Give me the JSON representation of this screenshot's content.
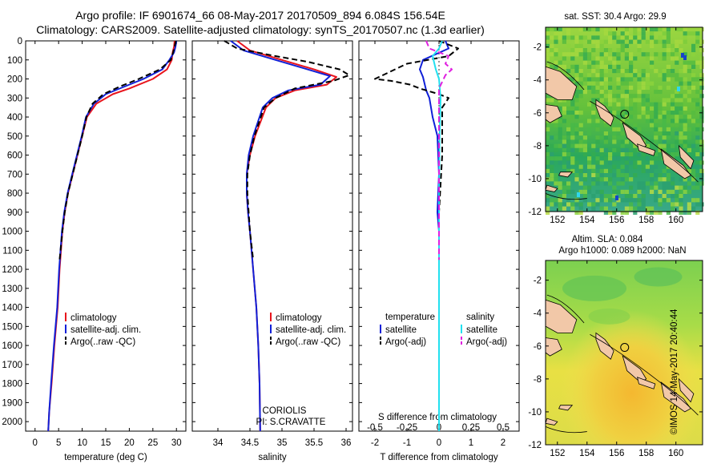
{
  "title_line1": "Argo profile: IF 6901674_66 08-May-2017 20170509_894 6.084S 156.54E",
  "title_line2": "Climatology: CARS2009. Satellite-adjusted climatology: synTS_20170507.nc (1.3d earlier)",
  "colors": {
    "red": "#e8141c",
    "blue": "#1020d8",
    "black": "#000000",
    "cyan": "#22e0ef",
    "magenta": "#e020e0",
    "land": "#f2c8a8"
  },
  "chart_data": [
    {
      "type": "line",
      "panel": "temperature",
      "xlabel": "temperature (deg C)",
      "ylabel": "",
      "xlim": [
        -2,
        32
      ],
      "ylim": [
        2050,
        0
      ],
      "xticks": [
        "0",
        "5",
        "10",
        "15",
        "20",
        "25",
        "30"
      ],
      "yticks": [
        "0",
        "100",
        "200",
        "300",
        "400",
        "500",
        "600",
        "700",
        "800",
        "900",
        "1000",
        "1100",
        "1200",
        "1300",
        "1400",
        "1500",
        "1600",
        "1700",
        "1800",
        "1900",
        "2000"
      ],
      "legend": [
        "climatology",
        "satellite-adj. clim.",
        "Argo(..raw -QC)"
      ],
      "series": [
        {
          "name": "climatology",
          "color": "red",
          "points": [
            [
              29.6,
              0
            ],
            [
              29.5,
              30
            ],
            [
              29.2,
              60
            ],
            [
              29.0,
              100
            ],
            [
              28.0,
              150
            ],
            [
              25.0,
              200
            ],
            [
              20.0,
              250
            ],
            [
              16.5,
              280
            ],
            [
              13.0,
              330
            ],
            [
              11.0,
              400
            ],
            [
              10.0,
              500
            ],
            [
              9.0,
              600
            ],
            [
              8.0,
              700
            ],
            [
              7.0,
              800
            ],
            [
              6.3,
              900
            ],
            [
              5.8,
              1000
            ],
            [
              5.2,
              1200
            ],
            [
              4.8,
              1400
            ],
            [
              4.1,
              1600
            ],
            [
              3.5,
              1800
            ],
            [
              3.0,
              1950
            ],
            [
              2.8,
              2050
            ]
          ]
        },
        {
          "name": "satellite-adj. clim.",
          "color": "blue",
          "points": [
            [
              30.0,
              0
            ],
            [
              29.8,
              30
            ],
            [
              29.5,
              60
            ],
            [
              28.5,
              100
            ],
            [
              27.0,
              150
            ],
            [
              23.0,
              200
            ],
            [
              19.0,
              240
            ],
            [
              15.0,
              280
            ],
            [
              12.5,
              330
            ],
            [
              10.8,
              400
            ],
            [
              9.9,
              500
            ],
            [
              8.9,
              600
            ],
            [
              7.9,
              700
            ],
            [
              6.9,
              800
            ],
            [
              6.2,
              900
            ],
            [
              5.7,
              1000
            ],
            [
              5.1,
              1200
            ],
            [
              4.7,
              1400
            ],
            [
              4.0,
              1600
            ],
            [
              3.4,
              1800
            ],
            [
              3.0,
              1950
            ],
            [
              2.8,
              2050
            ]
          ]
        },
        {
          "name": "Argo(..raw -QC)",
          "color": "black",
          "dashed": true,
          "points": [
            [
              29.9,
              0
            ],
            [
              29.6,
              30
            ],
            [
              29.3,
              60
            ],
            [
              28.8,
              100
            ],
            [
              26.5,
              150
            ],
            [
              22.0,
              200
            ],
            [
              18.0,
              240
            ],
            [
              14.5,
              280
            ],
            [
              12.2,
              330
            ],
            [
              10.9,
              400
            ],
            [
              10.0,
              500
            ],
            [
              9.0,
              600
            ],
            [
              8.0,
              700
            ],
            [
              7.0,
              800
            ],
            [
              6.3,
              900
            ],
            [
              5.8,
              1000
            ],
            [
              5.2,
              1150
            ]
          ]
        }
      ]
    },
    {
      "type": "line",
      "panel": "salinity",
      "xlabel": "salinity",
      "xlim": [
        33.6,
        36.1
      ],
      "ylim": [
        2050,
        0
      ],
      "xticks": [
        "34",
        "34.5",
        "35",
        "35.5",
        "36"
      ],
      "legend": [
        "climatology",
        "satellite-adj. clim.",
        "Argo(..raw -QC)"
      ],
      "annotation": [
        "CORIOLIS",
        "PI: S.CRAVATTE"
      ],
      "series": [
        {
          "name": "climatology",
          "color": "red",
          "points": [
            [
              34.3,
              0
            ],
            [
              34.5,
              50
            ],
            [
              35.0,
              100
            ],
            [
              35.5,
              150
            ],
            [
              35.85,
              190
            ],
            [
              35.7,
              230
            ],
            [
              35.2,
              260
            ],
            [
              34.9,
              300
            ],
            [
              34.75,
              350
            ],
            [
              34.58,
              500
            ],
            [
              34.5,
              600
            ],
            [
              34.45,
              700
            ],
            [
              34.45,
              800
            ],
            [
              34.47,
              900
            ],
            [
              34.5,
              1000
            ],
            [
              34.55,
              1200
            ],
            [
              34.6,
              1400
            ],
            [
              34.63,
              1600
            ],
            [
              34.65,
              1800
            ],
            [
              34.66,
              2050
            ]
          ]
        },
        {
          "name": "satellite-adj. clim.",
          "color": "blue",
          "points": [
            [
              34.2,
              0
            ],
            [
              34.4,
              50
            ],
            [
              34.9,
              100
            ],
            [
              35.4,
              150
            ],
            [
              35.75,
              185
            ],
            [
              35.6,
              230
            ],
            [
              35.1,
              260
            ],
            [
              34.85,
              300
            ],
            [
              34.7,
              350
            ],
            [
              34.55,
              500
            ],
            [
              34.48,
              600
            ],
            [
              34.45,
              700
            ],
            [
              34.45,
              800
            ],
            [
              34.47,
              900
            ],
            [
              34.5,
              1000
            ],
            [
              34.55,
              1200
            ],
            [
              34.6,
              1400
            ],
            [
              34.63,
              1600
            ],
            [
              34.65,
              1800
            ],
            [
              34.66,
              2050
            ]
          ]
        },
        {
          "name": "Argo(..raw -QC)",
          "color": "black",
          "dashed": true,
          "points": [
            [
              34.1,
              0
            ],
            [
              34.3,
              40
            ],
            [
              34.9,
              80
            ],
            [
              35.4,
              110
            ],
            [
              35.9,
              150
            ],
            [
              36.05,
              180
            ],
            [
              35.8,
              210
            ],
            [
              35.2,
              250
            ],
            [
              34.9,
              300
            ],
            [
              34.72,
              350
            ],
            [
              34.57,
              500
            ],
            [
              34.5,
              600
            ],
            [
              34.46,
              700
            ],
            [
              34.46,
              800
            ],
            [
              34.48,
              900
            ],
            [
              34.5,
              1000
            ],
            [
              34.55,
              1150
            ]
          ]
        }
      ]
    },
    {
      "type": "line",
      "panel": "difference",
      "xlabel": "T difference from climatology",
      "top_label": "S difference from climatology",
      "xlim": [
        -2.5,
        2.5
      ],
      "ylim": [
        2050,
        0
      ],
      "xticks": [
        "-2",
        "-1",
        "0",
        "1",
        "2"
      ],
      "sticks": [
        "-0.5",
        "-0.25",
        "0",
        "0.25",
        "0.5"
      ],
      "legend_titles": [
        "temperature",
        "salinity"
      ],
      "legend": [
        "satellite",
        "Argo(-adj)",
        "satellite",
        "Argo(-adj)"
      ],
      "series": [
        {
          "name": "temperature satellite",
          "color": "blue",
          "points": [
            [
              0.2,
              0
            ],
            [
              0.3,
              40
            ],
            [
              -0.5,
              100
            ],
            [
              -0.6,
              150
            ],
            [
              -0.5,
              190
            ],
            [
              -0.4,
              260
            ],
            [
              -0.3,
              300
            ],
            [
              -0.2,
              400
            ],
            [
              -0.05,
              500
            ],
            [
              0.0,
              700
            ],
            [
              -0.05,
              900
            ],
            [
              0.0,
              1000
            ],
            [
              0.0,
              1400
            ],
            [
              0.0,
              2050
            ]
          ]
        },
        {
          "name": "temperature Argo(-adj)",
          "color": "black",
          "dashed": true,
          "points": [
            [
              0.0,
              0
            ],
            [
              0.6,
              40
            ],
            [
              0.3,
              80
            ],
            [
              -1.0,
              120
            ],
            [
              -2.0,
              200
            ],
            [
              -1.5,
              210
            ],
            [
              -0.9,
              230
            ],
            [
              -0.6,
              250
            ],
            [
              0.0,
              280
            ],
            [
              0.3,
              300
            ],
            [
              0.1,
              350
            ],
            [
              0.1,
              500
            ],
            [
              0.1,
              600
            ],
            [
              0.0,
              900
            ],
            [
              0.0,
              1150
            ]
          ]
        },
        {
          "name": "salinity satellite",
          "color": "cyan",
          "points": [
            [
              0.1,
              0
            ],
            [
              0.0,
              40
            ],
            [
              -0.2,
              80
            ],
            [
              -0.1,
              150
            ],
            [
              0.0,
              200
            ],
            [
              0.05,
              300
            ],
            [
              0.02,
              500
            ],
            [
              0.0,
              800
            ],
            [
              0.0,
              1500
            ],
            [
              0.0,
              2050
            ]
          ]
        },
        {
          "name": "salinity Argo(-adj)",
          "color": "magenta",
          "dashed": true,
          "points": [
            [
              -0.4,
              0
            ],
            [
              -0.3,
              40
            ],
            [
              0.3,
              80
            ],
            [
              0.2,
              120
            ],
            [
              0.4,
              150
            ],
            [
              0.2,
              180
            ],
            [
              0.0,
              250
            ],
            [
              0.0,
              1150
            ]
          ]
        }
      ]
    },
    {
      "type": "heatmap",
      "panel": "sst-map",
      "title": "sat. SST: 30.4  Argo: 29.9",
      "xticks": [
        "152",
        "154",
        "156",
        "158",
        "160"
      ],
      "yticks": [
        "-2",
        "-4",
        "-6",
        "-8",
        "-10",
        "-12"
      ],
      "float_position": [
        156.54,
        -6.084
      ]
    },
    {
      "type": "heatmap",
      "panel": "sla-map",
      "title": "Altim. SLA: 0.084",
      "subtitle": "Argo h1000: 0.089  h2000: NaN",
      "xticks": [
        "152",
        "154",
        "156",
        "158",
        "160"
      ],
      "yticks": [
        "-2",
        "-4",
        "-6",
        "-8",
        "-10",
        "-12"
      ],
      "float_position": [
        156.54,
        -6.084
      ]
    }
  ],
  "side_label": "©IMOS 14-May-2017 20:40:44"
}
